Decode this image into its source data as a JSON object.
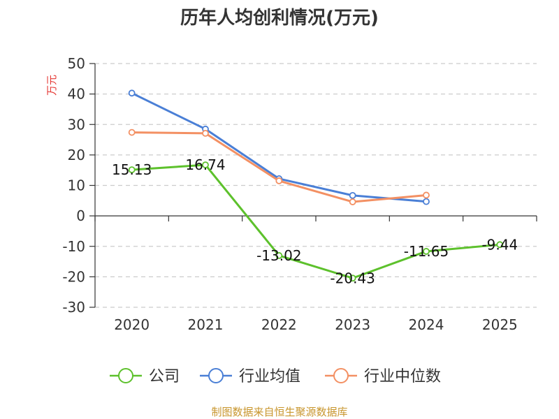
{
  "chart_data": {
    "type": "line",
    "title": "历年人均创利情况(万元)",
    "ylabel": "万元",
    "xlabel": "",
    "categories": [
      "2020",
      "2021",
      "2022",
      "2023",
      "2024",
      "2025"
    ],
    "ylim": [
      -30,
      50
    ],
    "yticks": [
      50,
      40,
      30,
      20,
      10,
      0,
      -10,
      -20,
      -30
    ],
    "grid": true,
    "legend_position": "bottom",
    "series": [
      {
        "name": "公司",
        "color": "#5dc12c",
        "values": [
          15.13,
          16.74,
          -13.02,
          -20.43,
          -11.65,
          -9.44
        ],
        "labels": [
          "15.13",
          "16.74",
          "-13.02",
          "-20.43",
          "-11.65",
          "-9.44"
        ]
      },
      {
        "name": "行业均值",
        "color": "#4a7fd6",
        "values": [
          40.3,
          28.5,
          12.2,
          6.7,
          4.7,
          null
        ]
      },
      {
        "name": "行业中位数",
        "color": "#f39063",
        "values": [
          27.4,
          27.1,
          11.5,
          4.6,
          6.8,
          null
        ]
      }
    ],
    "source": "制图数据来自恒生聚源数据库"
  }
}
